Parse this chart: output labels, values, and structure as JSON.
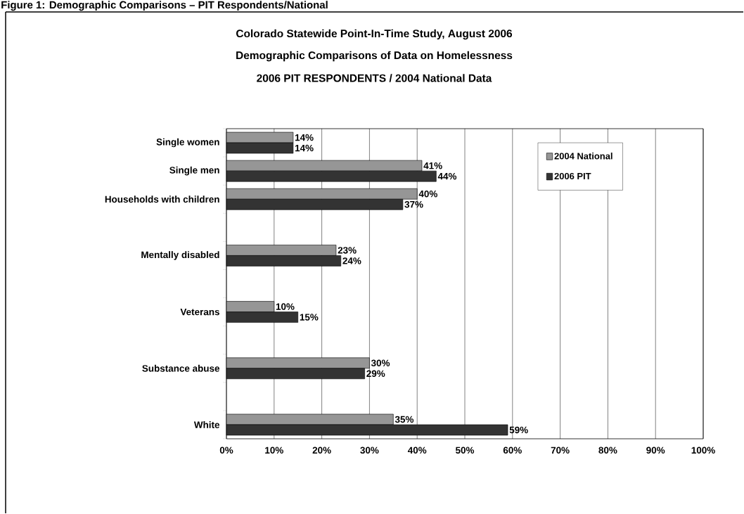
{
  "chart_data": {
    "type": "bar",
    "orientation": "horizontal",
    "title": "Colorado Statewide Point-In-Time Study, August 2006",
    "subtitle": "Demographic Comparisons of Data on Homelessness",
    "annotations": [
      "2006 PIT RESPONDENTS / 2004 National Data",
      "Figure 1: Demographic Comparisons – PIT Respondents/National"
    ],
    "categories": [
      "Single women",
      "Single men",
      "Households with children",
      null,
      "Mentally disabled",
      null,
      "Veterans",
      null,
      "Substance abuse",
      null,
      "White"
    ],
    "series": [
      {
        "name": "2004 National",
        "color": "#969696",
        "values": [
          14,
          41,
          40,
          null,
          23,
          null,
          10,
          null,
          30,
          null,
          35
        ],
        "value_labels": [
          "14%",
          "41%",
          "40%",
          null,
          "23%",
          null,
          "10%",
          null,
          "30%",
          null,
          "35%"
        ]
      },
      {
        "name": "2006 PIT",
        "color": "#333333",
        "values": [
          14,
          44,
          37,
          null,
          24,
          null,
          15,
          null,
          29,
          null,
          59
        ],
        "value_labels": [
          "14%",
          "44%",
          "37%",
          null,
          "24%",
          null,
          "15%",
          null,
          "29%",
          null,
          "59%"
        ]
      }
    ],
    "xlim": [
      0,
      100
    ],
    "xticks": [
      {
        "value": 0,
        "label": "0%"
      },
      {
        "value": 10,
        "label": "10%"
      },
      {
        "value": 20,
        "label": "20%"
      },
      {
        "value": 30,
        "label": "30%"
      },
      {
        "value": 40,
        "label": "40%"
      },
      {
        "value": 50,
        "label": "50%"
      },
      {
        "value": 60,
        "label": "60%"
      },
      {
        "value": 70,
        "label": "70%"
      },
      {
        "value": 80,
        "label": "80%"
      },
      {
        "value": 90,
        "label": "90%"
      },
      {
        "value": 100,
        "label": "100%"
      }
    ],
    "grid": "x",
    "legend": "top right"
  }
}
